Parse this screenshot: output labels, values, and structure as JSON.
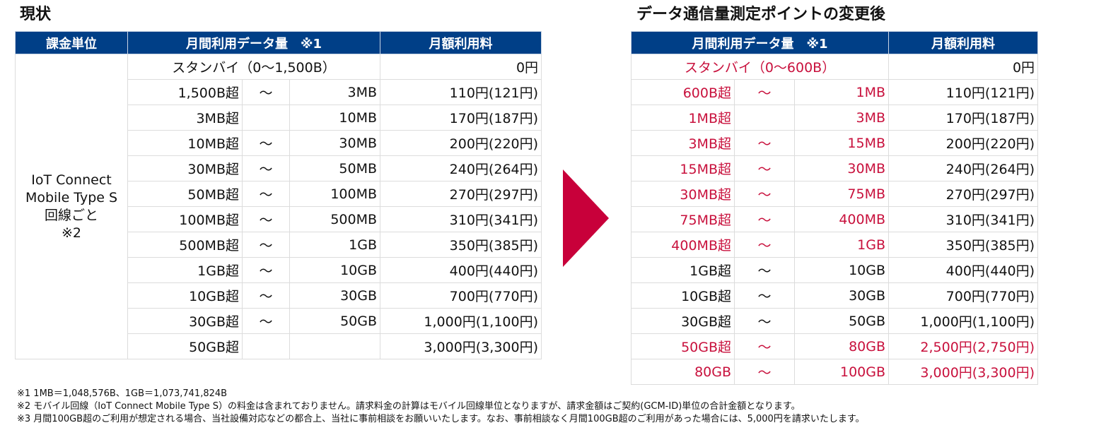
{
  "current": {
    "title": "現状",
    "headers": {
      "unit": "課金単位",
      "data": "月間利用データ量　※1",
      "fee": "月額利用料"
    },
    "unit_label": [
      "IoT Connect",
      "Mobile Type S",
      "回線ごと",
      "※2"
    ],
    "standby": {
      "label": "スタンバイ（0～1,500B）",
      "price": "0円"
    },
    "rows": [
      {
        "from": "1,500B超",
        "sep": "～",
        "to": "3MB",
        "price": "110円(121円)"
      },
      {
        "from": "3MB超",
        "sep": "",
        "to": "10MB",
        "price": "170円(187円)"
      },
      {
        "from": "10MB超",
        "sep": "～",
        "to": "30MB",
        "price": "200円(220円)"
      },
      {
        "from": "30MB超",
        "sep": "～",
        "to": "50MB",
        "price": "240円(264円)"
      },
      {
        "from": "50MB超",
        "sep": "～",
        "to": "100MB",
        "price": "270円(297円)"
      },
      {
        "from": "100MB超",
        "sep": "～",
        "to": "500MB",
        "price": "310円(341円)"
      },
      {
        "from": "500MB超",
        "sep": "～",
        "to": "1GB",
        "price": "350円(385円)"
      },
      {
        "from": "1GB超",
        "sep": "～",
        "to": "10GB",
        "price": "400円(440円)"
      },
      {
        "from": "10GB超",
        "sep": "～",
        "to": "30GB",
        "price": "700円(770円)"
      },
      {
        "from": "30GB超",
        "sep": "～",
        "to": "50GB",
        "price": "1,000円(1,100円)"
      },
      {
        "from": "50GB超",
        "sep": "",
        "to": "",
        "price": "3,000円(3,300円)"
      }
    ]
  },
  "changed": {
    "title": "データ通信量測定ポイントの変更後",
    "headers": {
      "data": "月間利用データ量　※1",
      "fee": "月額利用料"
    },
    "standby": {
      "label": "スタンバイ（0～600B）",
      "price": "0円",
      "changed": true
    },
    "rows": [
      {
        "from": "600B超",
        "sep": "～",
        "to": "1MB",
        "price": "110円(121円)",
        "range_changed": true,
        "price_changed": false
      },
      {
        "from": "1MB超",
        "sep": "",
        "to": "3MB",
        "price": "170円(187円)",
        "range_changed": true,
        "price_changed": false
      },
      {
        "from": "3MB超",
        "sep": "～",
        "to": "15MB",
        "price": "200円(220円)",
        "range_changed": true,
        "price_changed": false
      },
      {
        "from": "15MB超",
        "sep": "～",
        "to": "30MB",
        "price": "240円(264円)",
        "range_changed": true,
        "price_changed": false
      },
      {
        "from": "30MB超",
        "sep": "～",
        "to": "75MB",
        "price": "270円(297円)",
        "range_changed": true,
        "price_changed": false
      },
      {
        "from": "75MB超",
        "sep": "～",
        "to": "400MB",
        "price": "310円(341円)",
        "range_changed": true,
        "price_changed": false
      },
      {
        "from": "400MB超",
        "sep": "～",
        "to": "1GB",
        "price": "350円(385円)",
        "range_changed": true,
        "price_changed": false
      },
      {
        "from": "1GB超",
        "sep": "～",
        "to": "10GB",
        "price": "400円(440円)",
        "range_changed": false,
        "price_changed": false
      },
      {
        "from": "10GB超",
        "sep": "～",
        "to": "30GB",
        "price": "700円(770円)",
        "range_changed": false,
        "price_changed": false
      },
      {
        "from": "30GB超",
        "sep": "～",
        "to": "50GB",
        "price": "1,000円(1,100円)",
        "range_changed": false,
        "price_changed": false
      },
      {
        "from": "50GB超",
        "sep": "～",
        "to": "80GB",
        "price": "2,500円(2,750円)",
        "range_changed": true,
        "price_changed": true
      },
      {
        "from": "80GB",
        "sep": "～",
        "to": "100GB",
        "price": "3,000円(3,300円)",
        "range_changed": true,
        "price_changed": true
      }
    ]
  },
  "colors": {
    "header": "#003f87",
    "changed": "#c8103c",
    "arrow": "#c8003a"
  },
  "notes": [
    "※1 1MB＝1,048,576B、1GB＝1,073,741,824B",
    "※2 モバイル回線（IoT Connect Mobile Type S）の料金は含まれておりません。請求料金の計算はモバイル回線単位となりますが、請求金額はご契約(GCM-ID)単位の合計金額となります。",
    "※3 月間100GB超のご利用が想定される場合、当社設備対応などの都合上、当社に事前相談をお願いいたします。なお、事前相談なく月間100GB超のご利用があった場合には、5,000円を請求いたします。"
  ]
}
